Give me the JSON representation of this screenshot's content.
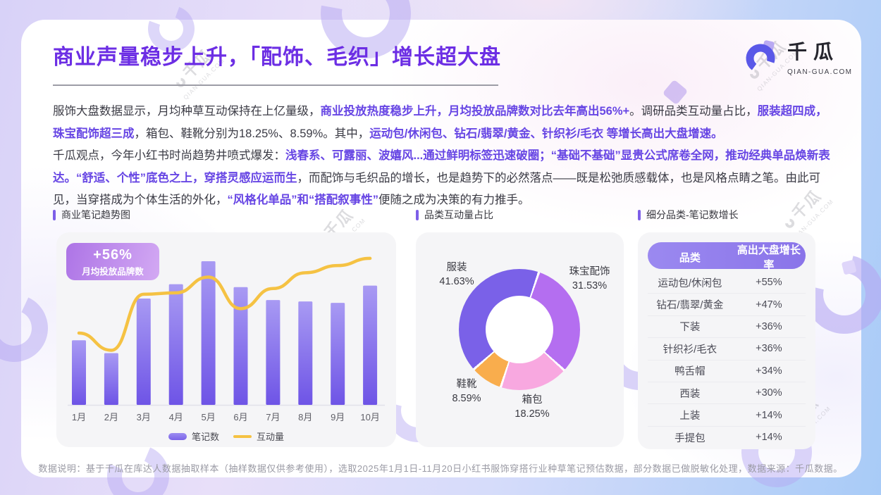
{
  "page": {
    "title": "商业声量稳步上升，「配饰、毛织」增长超大盘",
    "logo": {
      "name": "千瓜",
      "domain": "QIAN-GUA.COM"
    },
    "watermark": {
      "text": "千瓜",
      "sub": "QIAN-GUA.COM"
    },
    "footer": "数据说明：基于千瓜在库达人数据抽取样本（抽样数据仅供参考使用），选取2025年1月1日-11月20日小红书服饰穿搭行业种草笔记预估数据，部分数据已做脱敏化处理，数据来源：千瓜数据。"
  },
  "paragraphs": [
    {
      "segments": [
        {
          "t": "服饰大盘数据显示，月均种草互动保持在上亿量级，",
          "h": false
        },
        {
          "t": "商业投放热度稳步上升，月均投放品牌数对比去年高出56%+",
          "h": true
        },
        {
          "t": "。调研品类互动量占比，",
          "h": false
        },
        {
          "t": "服装超四成，珠宝配饰超三成",
          "h": true
        },
        {
          "t": "，箱包、鞋靴分别为18.25%、8.59%。其中，",
          "h": false
        },
        {
          "t": "运动包/休闲包、钻石/翡翠/黄金、针织衫/毛衣 等增长高出大盘增速。",
          "h": true
        }
      ]
    },
    {
      "segments": [
        {
          "t": "千瓜观点，今年小红书时尚趋势井喷式爆发：",
          "h": false
        },
        {
          "t": "浅春系、可露丽、波嬉风...通过鲜明标签迅速破圈；“基础不基础”显贵公式席卷全网，推动经典单品焕新表达。“舒适、个性”底色之上，穿搭灵感应运而生",
          "h": true
        },
        {
          "t": "，而配饰与毛织品的增长，也是趋势下的必然落点——既是松弛质感载体，也是风格点睛之笔。由此可见，当穿搭成为个体生活的外化，",
          "h": false
        },
        {
          "t": "“风格化单品”和“搭配叙事性”",
          "h": true
        },
        {
          "t": "便随之成为决策的有力推手。",
          "h": false
        }
      ]
    }
  ],
  "chart_data": [
    {
      "type": "bar",
      "title": "商业笔记趋势图",
      "categories": [
        "1月",
        "2月",
        "3月",
        "4月",
        "5月",
        "6月",
        "7月",
        "8月",
        "9月",
        "10月"
      ],
      "series": [
        {
          "name": "笔记数",
          "type": "bar",
          "values": [
            45,
            36,
            74,
            84,
            100,
            82,
            73,
            72,
            71,
            83
          ]
        },
        {
          "name": "互动量",
          "type": "line",
          "values": [
            50,
            38,
            77,
            78,
            89,
            67,
            81,
            92,
            97,
            102
          ]
        }
      ],
      "value_scale": "relative index, 5月 bar = 100",
      "ylim": [
        0,
        110
      ],
      "grid": false,
      "legend_position": "bottom",
      "badge": {
        "value": "+56%",
        "label": "月均投放品牌数"
      },
      "colors": {
        "bar_top": "#a89af3",
        "bar_bottom": "#6e54e6",
        "line": "#f5c243"
      }
    },
    {
      "type": "pie",
      "title": "品类互动量占比",
      "donut": true,
      "start_angle_deg": 230,
      "slices": [
        {
          "label": "服装",
          "value": 41.63,
          "color": "#7a61e8"
        },
        {
          "label": "珠宝配饰",
          "value": 31.53,
          "color": "#b46ef0"
        },
        {
          "label": "箱包",
          "value": 18.25,
          "color": "#f8a8e0"
        },
        {
          "label": "鞋靴",
          "value": 8.59,
          "color": "#f9ad4d"
        }
      ]
    },
    {
      "type": "table",
      "title": "细分品类-笔记数增长",
      "columns": [
        "品类",
        "高出大盘增长率"
      ],
      "rows": [
        [
          "运动包/休闲包",
          "+55%"
        ],
        [
          "钻石/翡翠/黄金",
          "+47%"
        ],
        [
          "下装",
          "+36%"
        ],
        [
          "针织衫/毛衣",
          "+36%"
        ],
        [
          "鸭舌帽",
          "+34%"
        ],
        [
          "西装",
          "+30%"
        ],
        [
          "上装",
          "+14%"
        ],
        [
          "手提包",
          "+14%"
        ]
      ]
    }
  ]
}
